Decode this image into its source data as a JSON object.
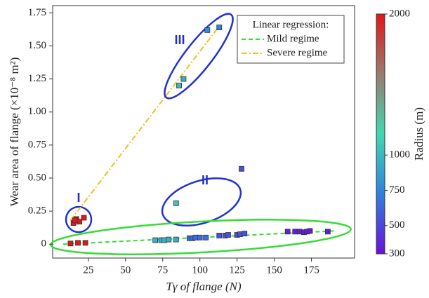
{
  "chart_data": {
    "type": "scatter",
    "x_label": "Tγ of flange (N)",
    "y_label": "Wear area of flange (×10⁻⁸ m²)",
    "xlim": [
      1,
      204
    ],
    "xticks": [
      25,
      50,
      75,
      100,
      125,
      150,
      175
    ],
    "ylim": [
      -0.105,
      1.805
    ],
    "yticks": [
      0,
      0.25,
      {
        "value": 0.5,
        "label": "0.50"
      },
      0.75,
      {
        "value": 1.0,
        "label": "1.00"
      },
      1.25,
      {
        "value": 1.5,
        "label": "1.50"
      },
      1.75
    ],
    "points": {
      "x": [
        15,
        17,
        19,
        22,
        16,
        13,
        18,
        23,
        70,
        74,
        76,
        79,
        84,
        93,
        95,
        97,
        100,
        104,
        113,
        117,
        119,
        125,
        127,
        130,
        159,
        164,
        167,
        170,
        172,
        174,
        186,
        84,
        128,
        86,
        89,
        105,
        113
      ],
      "y": [
        0.16,
        0.19,
        0.17,
        0.2,
        0.18,
        0.005,
        0.01,
        0.01,
        0.03,
        0.03,
        0.03,
        0.035,
        0.035,
        0.045,
        0.045,
        0.05,
        0.05,
        0.05,
        0.065,
        0.065,
        0.07,
        0.07,
        0.075,
        0.08,
        0.095,
        0.095,
        0.095,
        0.09,
        0.095,
        0.1,
        0.095,
        0.31,
        0.57,
        1.2,
        1.25,
        1.62,
        1.64
      ],
      "radius": [
        2000,
        2000,
        2000,
        2000,
        2000,
        2000,
        2000,
        2000,
        950,
        950,
        950,
        950,
        950,
        650,
        650,
        650,
        650,
        650,
        550,
        550,
        550,
        550,
        550,
        550,
        350,
        350,
        350,
        350,
        350,
        350,
        350,
        1050,
        550,
        1000,
        950,
        800,
        750
      ]
    },
    "colorbar": {
      "label": "Radius (m)",
      "lim": [
        300,
        2000
      ],
      "ticks": [
        300,
        500,
        750,
        1000,
        2000
      ],
      "colors": [
        "#6a10d8",
        "#2f80e0",
        "#40d8b0",
        "#9a7a70",
        "#e01818"
      ]
    },
    "legend": {
      "title": "Linear regression:",
      "position": "upper right"
    },
    "lines": [
      {
        "name": "Mild regime",
        "color": "#33dd33",
        "dash": "dash",
        "x": [
          8,
          190
        ],
        "y": [
          0.0,
          0.1
        ]
      },
      {
        "name": "Severe regime",
        "color": "#f0c020",
        "dash": "dashdot",
        "x": [
          13,
          113
        ],
        "y": [
          0.18,
          1.65
        ]
      }
    ],
    "annotations": [
      "I",
      "II",
      "III"
    ]
  }
}
